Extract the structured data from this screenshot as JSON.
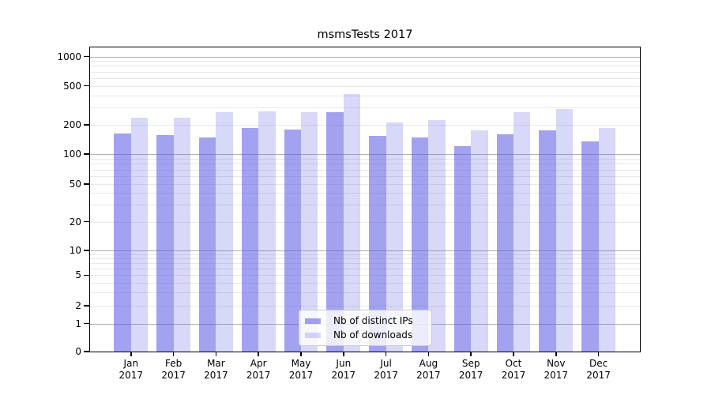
{
  "title": "msmsTests 2017",
  "y_axis": {
    "ticks": [
      0,
      1,
      2,
      5,
      10,
      20,
      50,
      100,
      200,
      500,
      1000
    ]
  },
  "x_axis": {
    "months": [
      "Jan",
      "Feb",
      "Mar",
      "Apr",
      "May",
      "Jun",
      "Jul",
      "Aug",
      "Sep",
      "Oct",
      "Nov",
      "Dec"
    ],
    "year": "2017"
  },
  "legend": {
    "items": [
      {
        "label": "Nb of distinct IPs",
        "series_key": "ips"
      },
      {
        "label": "Nb of downloads",
        "series_key": "downloads"
      }
    ]
  },
  "colors": {
    "ips": "rgba(90,90,230,0.56)",
    "downloads": "rgba(90,90,230,0.24)",
    "grid_major": "#b0b0b0",
    "grid_minor": "#e8e8e8",
    "spine": "#000000",
    "legend_bg": "rgba(255,255,255,0.8)",
    "legend_border": "#cccccc",
    "text": "#000000"
  },
  "chart_data": {
    "type": "bar",
    "title": "msmsTests 2017",
    "categories": [
      "Jan 2017",
      "Feb 2017",
      "Mar 2017",
      "Apr 2017",
      "May 2017",
      "Jun 2017",
      "Jul 2017",
      "Aug 2017",
      "Sep 2017",
      "Oct 2017",
      "Nov 2017",
      "Dec 2017"
    ],
    "series": [
      {
        "name": "Nb of distinct IPs",
        "values": [
          163,
          156,
          148,
          186,
          178,
          269,
          155,
          149,
          121,
          161,
          175,
          136
        ]
      },
      {
        "name": "Nb of downloads",
        "values": [
          239,
          235,
          268,
          276,
          269,
          412,
          213,
          226,
          177,
          268,
          289,
          187
        ]
      }
    ],
    "xlabel": "",
    "ylabel": "",
    "yscale": "pseudo-log",
    "yticks": [
      0,
      1,
      2,
      5,
      10,
      20,
      50,
      100,
      200,
      500,
      1000
    ],
    "ylim": [
      0,
      1150
    ],
    "grid": true,
    "legend_position": "inside-bottom-center"
  }
}
